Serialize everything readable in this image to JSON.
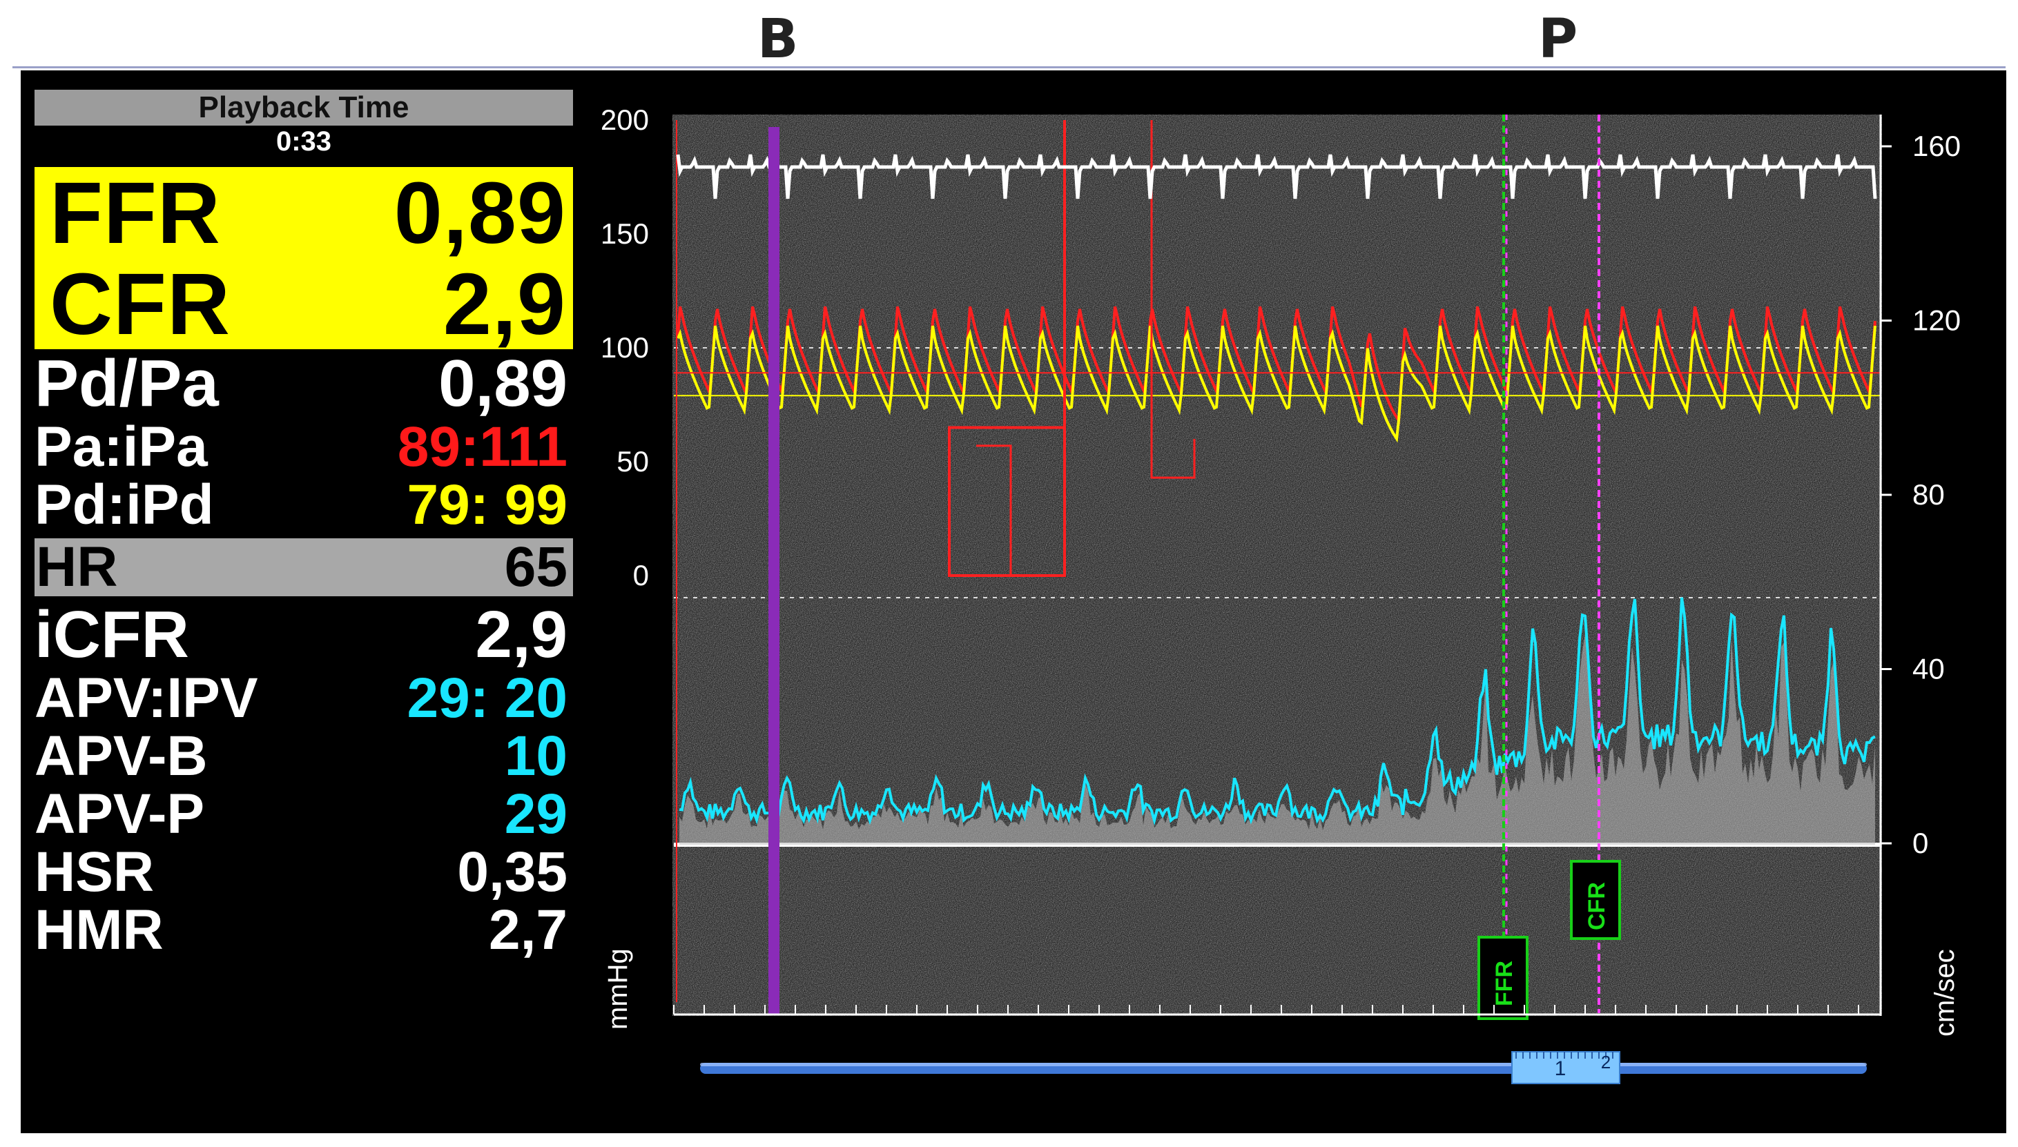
{
  "markers": {
    "baseline": "B",
    "peak": "P"
  },
  "playback": {
    "title": "Playback Time",
    "time": "0:33"
  },
  "highlight": [
    {
      "label": "FFR",
      "value": "0,89"
    },
    {
      "label": "CFR",
      "value": "2,9"
    }
  ],
  "metrics": [
    {
      "label": "Pd/Pa",
      "value": "0,89",
      "color": "#ffffff"
    },
    {
      "label": "Pa:iPa",
      "value": "89:111",
      "color": "#ff1a1a"
    },
    {
      "label": "Pd:iPd",
      "value": "79: 99",
      "color": "#ffff00"
    },
    {
      "label": "HR",
      "value": "65",
      "color": "#000000"
    },
    {
      "label": "iCFR",
      "value": "2,9",
      "color": "#ffffff"
    },
    {
      "label": "APV:IPV",
      "value": "29: 20",
      "color": "#19e6ff"
    },
    {
      "label": "APV-B",
      "value": "10",
      "color": "#19e6ff"
    },
    {
      "label": "APV-P",
      "value": "29",
      "color": "#19e6ff"
    },
    {
      "label": "HSR",
      "value": "0,35",
      "color": "#ffffff"
    },
    {
      "label": "HMR",
      "value": "2,7",
      "color": "#ffffff"
    }
  ],
  "chart_data": {
    "type": "line",
    "left_axis": {
      "unit": "mmHg",
      "ticks": [
        "200",
        "150",
        "100",
        "50",
        "0"
      ],
      "range": [
        0,
        200
      ]
    },
    "right_axis": {
      "unit": "cm/sec",
      "ticks": [
        "160",
        "120",
        "80",
        "40",
        "0"
      ],
      "range": [
        0,
        160
      ]
    },
    "annotations": [
      "FFR",
      "CFR"
    ],
    "colors": {
      "pa": "#ff2020",
      "pd": "#ffff00",
      "velocity": "#19e6ff",
      "ecg": "#ffffff",
      "baseline_marker": "#8a2bb8",
      "ffr_marker": "#18d018",
      "cfr_marker": "#ff40ff"
    },
    "series": [
      {
        "name": "Pa",
        "mean": 89,
        "peak": 120,
        "min": 80
      },
      {
        "name": "Pd",
        "mean": 79,
        "peak": 110,
        "min": 72
      },
      {
        "name": "APV",
        "baseline": 10,
        "peak": 29
      }
    ],
    "timeline": {
      "labels": [
        "1",
        "2"
      ]
    }
  }
}
